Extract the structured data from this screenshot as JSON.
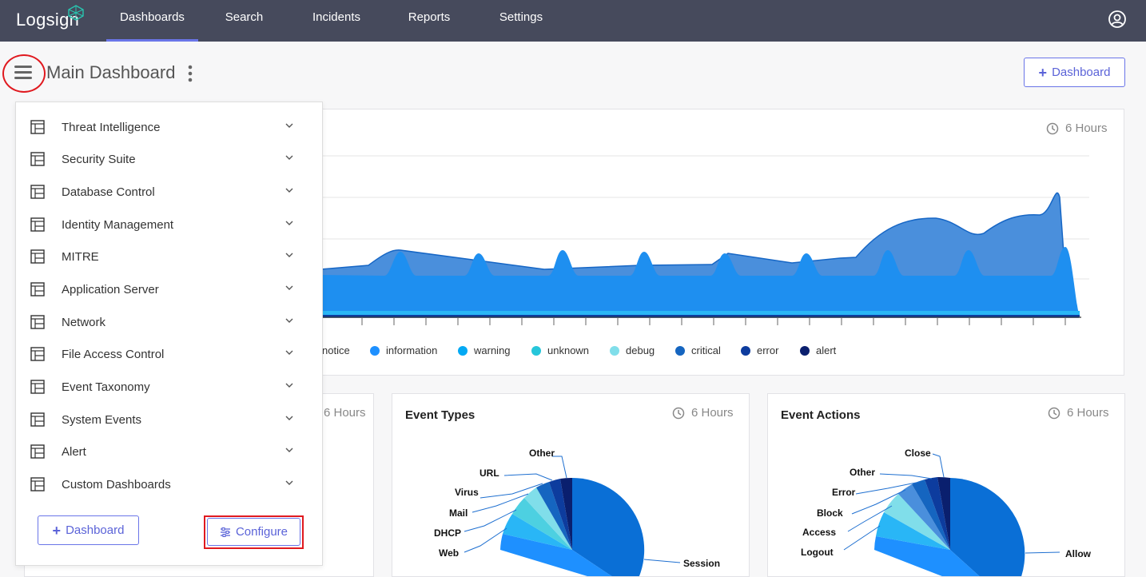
{
  "app": {
    "logo": "Logsign"
  },
  "nav": {
    "items": [
      {
        "label": "Dashboards",
        "active": true
      },
      {
        "label": "Search"
      },
      {
        "label": "Incidents"
      },
      {
        "label": "Reports"
      },
      {
        "label": "Settings"
      }
    ],
    "user_icon": "user-circle-icon"
  },
  "header": {
    "title": "Main Dashboard",
    "add_dashboard_label": "Dashboard"
  },
  "timeline_card": {
    "time_range": "6 Hours",
    "legend": [
      {
        "label": "notice",
        "color": "#1e88e5"
      },
      {
        "label": "information",
        "color": "#1e90ff"
      },
      {
        "label": "warning",
        "color": "#03a9f4"
      },
      {
        "label": "unknown",
        "color": "#26c6da"
      },
      {
        "label": "debug",
        "color": "#80deea"
      },
      {
        "label": "critical",
        "color": "#1565c0"
      },
      {
        "label": "error",
        "color": "#0d3c9e"
      },
      {
        "label": "alert",
        "color": "#0a1f6e"
      }
    ]
  },
  "side_panel": {
    "items": [
      {
        "label": "Threat Intelligence"
      },
      {
        "label": "Security Suite"
      },
      {
        "label": "Database Control"
      },
      {
        "label": "Identity Management"
      },
      {
        "label": "MITRE"
      },
      {
        "label": "Application Server"
      },
      {
        "label": "Network"
      },
      {
        "label": "File Access Control"
      },
      {
        "label": "Event Taxonomy"
      },
      {
        "label": "System Events"
      },
      {
        "label": "Alert"
      },
      {
        "label": "Custom Dashboards"
      }
    ],
    "dashboard_button": "Dashboard",
    "configure_button": "Configure"
  },
  "small_card_left": {
    "time_range": "6 Hours"
  },
  "event_types_card": {
    "title": "Event Types",
    "time_range": "6 Hours",
    "labels": [
      "Other",
      "URL",
      "Virus",
      "Mail",
      "DHCP",
      "Web",
      "Session"
    ]
  },
  "event_actions_card": {
    "title": "Event Actions",
    "time_range": "6 Hours",
    "labels": [
      "Close",
      "Other",
      "Error",
      "Block",
      "Access",
      "Logout",
      "Allow"
    ]
  }
}
